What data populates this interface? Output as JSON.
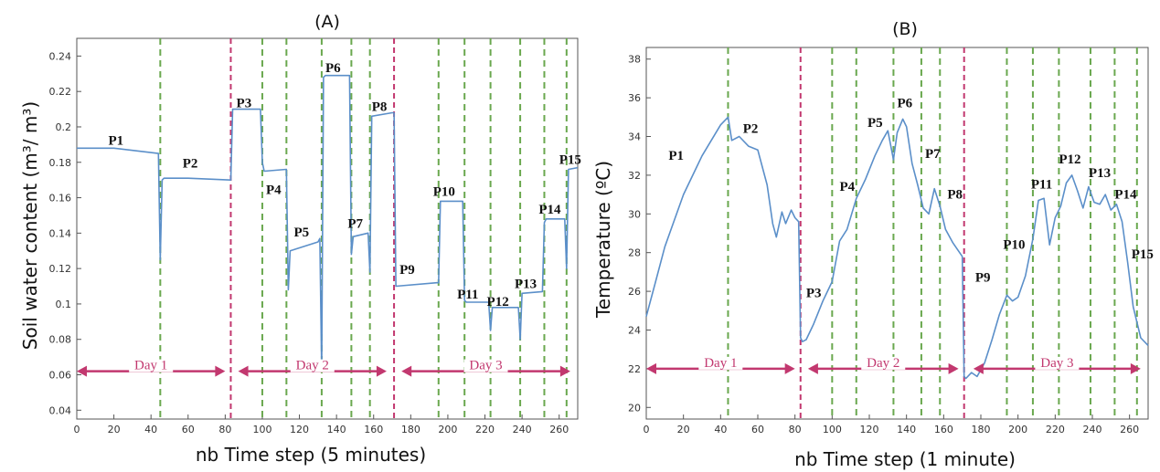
{
  "colors": {
    "line": "#5b8fc9",
    "green_divider": "#6aa84f",
    "day_divider": "#c2386f",
    "arrow": "#c2386f",
    "axis": "#555555"
  },
  "chart_data": [
    {
      "type": "line",
      "title": "(A)",
      "xlabel": "nb Time step (5 minutes)",
      "ylabel": "Soil water content (m³/ m³)",
      "xlim": [
        0,
        270
      ],
      "ylim": [
        0.035,
        0.25
      ],
      "xticks": [
        0,
        20,
        40,
        60,
        80,
        100,
        120,
        140,
        160,
        180,
        200,
        220,
        240,
        260
      ],
      "yticks": [
        0.04,
        0.06,
        0.08,
        0.1,
        0.12,
        0.14,
        0.16,
        0.18,
        0.2,
        0.22,
        0.24
      ],
      "ytick_labels": [
        "0.04",
        "0.06",
        "0.08",
        "0.1",
        "0.12",
        "0.14",
        "0.16",
        "0.18",
        "0.2",
        "0.22",
        "0.24"
      ],
      "green_dividers": [
        45,
        100,
        113,
        132,
        148,
        158,
        195,
        209,
        223,
        239,
        252,
        264
      ],
      "day_dividers": [
        83,
        171
      ],
      "days": [
        {
          "label": "Day 1",
          "from": 0,
          "to": 80,
          "y": 0.062
        },
        {
          "label": "Day 2",
          "from": 87,
          "to": 167,
          "y": 0.062
        },
        {
          "label": "Day 3",
          "from": 175,
          "to": 266,
          "y": 0.062
        }
      ],
      "series": [
        {
          "x": [
            0,
            20,
            44,
            45,
            46,
            47,
            60,
            83,
            84,
            99,
            100,
            101,
            113,
            114,
            115,
            130,
            131,
            132,
            133,
            134,
            147,
            148,
            149,
            157,
            158,
            159,
            170,
            171,
            172,
            194,
            195,
            196,
            208,
            209,
            210,
            222,
            223,
            224,
            238,
            239,
            240,
            251,
            252,
            253,
            263,
            264,
            265,
            270
          ],
          "y": [
            0.188,
            0.188,
            0.185,
            0.125,
            0.17,
            0.171,
            0.171,
            0.17,
            0.21,
            0.21,
            0.18,
            0.175,
            0.176,
            0.108,
            0.13,
            0.135,
            0.137,
            0.062,
            0.228,
            0.229,
            0.229,
            0.128,
            0.138,
            0.14,
            0.118,
            0.206,
            0.208,
            0.208,
            0.11,
            0.112,
            0.112,
            0.158,
            0.158,
            0.102,
            0.101,
            0.101,
            0.085,
            0.098,
            0.098,
            0.08,
            0.106,
            0.107,
            0.146,
            0.148,
            0.148,
            0.12,
            0.176,
            0.177
          ]
        }
      ],
      "annotations": [
        {
          "label": "P1",
          "x": 17,
          "y": 0.19
        },
        {
          "label": "P2",
          "x": 57,
          "y": 0.177
        },
        {
          "label": "P3",
          "x": 86,
          "y": 0.211
        },
        {
          "label": "P4",
          "x": 102,
          "y": 0.162
        },
        {
          "label": "P5",
          "x": 117,
          "y": 0.138
        },
        {
          "label": "P6",
          "x": 134,
          "y": 0.231
        },
        {
          "label": "P7",
          "x": 146,
          "y": 0.143
        },
        {
          "label": "P8",
          "x": 159,
          "y": 0.209
        },
        {
          "label": "P9",
          "x": 174,
          "y": 0.117
        },
        {
          "label": "P10",
          "x": 192,
          "y": 0.161
        },
        {
          "label": "P11",
          "x": 205,
          "y": 0.103
        },
        {
          "label": "P12",
          "x": 221,
          "y": 0.099
        },
        {
          "label": "P13",
          "x": 236,
          "y": 0.109
        },
        {
          "label": "P14",
          "x": 249,
          "y": 0.151
        },
        {
          "label": "P15",
          "x": 260,
          "y": 0.179
        }
      ]
    },
    {
      "type": "line",
      "title": "(B)",
      "xlabel": "nb Time step (1 minute)",
      "ylabel": "Temperature (ºC)",
      "xlim": [
        0,
        270
      ],
      "ylim": [
        19.4,
        38.6
      ],
      "xticks": [
        0,
        20,
        40,
        60,
        80,
        100,
        120,
        140,
        160,
        180,
        200,
        220,
        240,
        260
      ],
      "yticks": [
        20,
        22,
        24,
        26,
        28,
        30,
        32,
        34,
        36,
        38
      ],
      "ytick_labels": [
        "20",
        "22",
        "24",
        "26",
        "28",
        "30",
        "32",
        "34",
        "36",
        "38"
      ],
      "green_dividers": [
        44,
        100,
        113,
        133,
        148,
        158,
        194,
        208,
        222,
        239,
        252,
        264
      ],
      "day_dividers": [
        83,
        171
      ],
      "days": [
        {
          "label": "Day 1",
          "from": 0,
          "to": 80,
          "y": 22.0
        },
        {
          "label": "Day 2",
          "from": 87,
          "to": 168,
          "y": 22.0
        },
        {
          "label": "Day 3",
          "from": 176,
          "to": 266,
          "y": 22.0
        }
      ],
      "series": [
        {
          "x": [
            0,
            5,
            10,
            20,
            30,
            40,
            44,
            46,
            50,
            55,
            60,
            65,
            68,
            70,
            73,
            75,
            78,
            80,
            82,
            83,
            84,
            86,
            90,
            95,
            100,
            104,
            108,
            113,
            118,
            123,
            127,
            130,
            133,
            135,
            138,
            140,
            143,
            146,
            149,
            152,
            155,
            158,
            161,
            165,
            170,
            171,
            172,
            175,
            178,
            182,
            186,
            190,
            194,
            197,
            200,
            204,
            208,
            211,
            214,
            217,
            220,
            223,
            226,
            229,
            232,
            235,
            238,
            241,
            244,
            247,
            250,
            253,
            256,
            259,
            262,
            266,
            270
          ],
          "y": [
            24.7,
            26.5,
            28.3,
            31.0,
            33.0,
            34.6,
            35.0,
            33.8,
            34.0,
            33.5,
            33.3,
            31.5,
            29.5,
            28.8,
            30.1,
            29.5,
            30.2,
            29.8,
            29.6,
            23.6,
            23.4,
            23.5,
            24.3,
            25.5,
            26.5,
            28.6,
            29.2,
            30.8,
            31.8,
            33.0,
            33.8,
            34.3,
            32.8,
            34.2,
            34.9,
            34.5,
            32.6,
            31.5,
            30.3,
            30.0,
            31.3,
            30.4,
            29.2,
            28.5,
            27.8,
            21.6,
            21.5,
            21.8,
            21.6,
            22.3,
            23.5,
            24.8,
            25.8,
            25.5,
            25.7,
            26.8,
            28.7,
            30.7,
            30.8,
            28.4,
            29.8,
            30.4,
            31.6,
            32.0,
            31.2,
            30.3,
            31.4,
            30.6,
            30.5,
            31.0,
            30.2,
            30.5,
            29.6,
            27.5,
            25.2,
            23.6,
            23.2
          ]
        }
      ],
      "annotations": [
        {
          "label": "P1",
          "x": 12,
          "y": 32.8
        },
        {
          "label": "P2",
          "x": 52,
          "y": 34.2
        },
        {
          "label": "P3",
          "x": 86,
          "y": 25.7
        },
        {
          "label": "P4",
          "x": 104,
          "y": 31.2
        },
        {
          "label": "P5",
          "x": 119,
          "y": 34.5
        },
        {
          "label": "P6",
          "x": 135,
          "y": 35.5
        },
        {
          "label": "P7",
          "x": 150,
          "y": 32.9
        },
        {
          "label": "P8",
          "x": 162,
          "y": 30.8
        },
        {
          "label": "P9",
          "x": 177,
          "y": 26.5
        },
        {
          "label": "P10",
          "x": 192,
          "y": 28.2
        },
        {
          "label": "P11",
          "x": 207,
          "y": 31.3
        },
        {
          "label": "P12",
          "x": 222,
          "y": 32.6
        },
        {
          "label": "P13",
          "x": 238,
          "y": 31.9
        },
        {
          "label": "P14",
          "x": 252,
          "y": 30.8
        },
        {
          "label": "P15",
          "x": 261,
          "y": 27.7
        }
      ]
    }
  ]
}
